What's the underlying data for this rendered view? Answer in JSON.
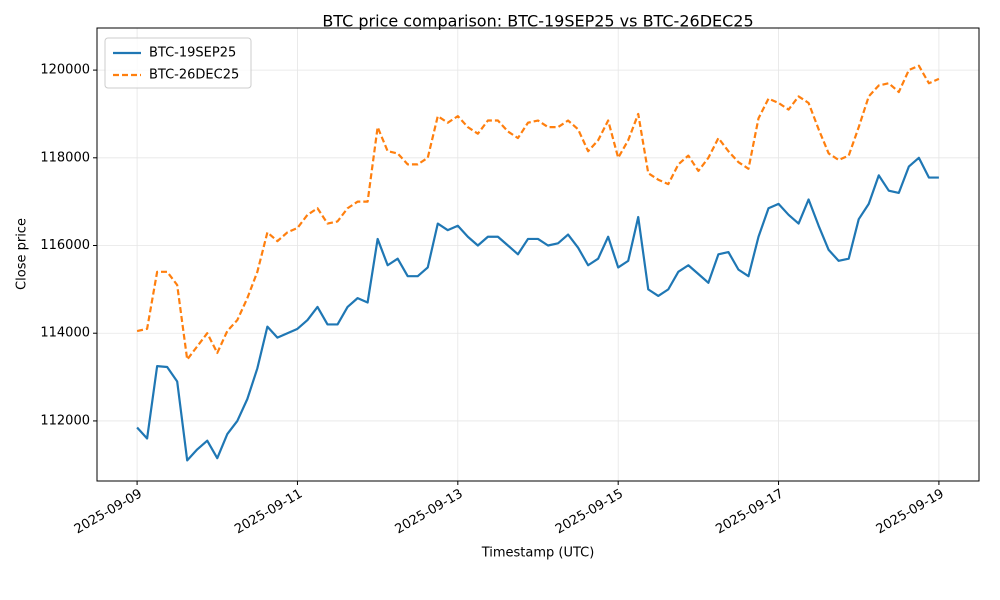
{
  "chart_data": {
    "type": "line",
    "title": "BTC price comparison: BTC-19SEP25 vs BTC-26DEC25",
    "x_label": "Timestamp (UTC)",
    "y_label": "Close price",
    "x": [
      "2025-09-09 00:00",
      "2025-09-09 03:00",
      "2025-09-09 06:00",
      "2025-09-09 09:00",
      "2025-09-09 12:00",
      "2025-09-09 15:00",
      "2025-09-09 18:00",
      "2025-09-09 21:00",
      "2025-09-10 00:00",
      "2025-09-10 03:00",
      "2025-09-10 06:00",
      "2025-09-10 09:00",
      "2025-09-10 12:00",
      "2025-09-10 15:00",
      "2025-09-10 18:00",
      "2025-09-10 21:00",
      "2025-09-11 00:00",
      "2025-09-11 03:00",
      "2025-09-11 06:00",
      "2025-09-11 09:00",
      "2025-09-11 12:00",
      "2025-09-11 15:00",
      "2025-09-11 18:00",
      "2025-09-11 21:00",
      "2025-09-12 00:00",
      "2025-09-12 03:00",
      "2025-09-12 06:00",
      "2025-09-12 09:00",
      "2025-09-12 12:00",
      "2025-09-12 15:00",
      "2025-09-12 18:00",
      "2025-09-12 21:00",
      "2025-09-13 00:00",
      "2025-09-13 03:00",
      "2025-09-13 06:00",
      "2025-09-13 09:00",
      "2025-09-13 12:00",
      "2025-09-13 15:00",
      "2025-09-13 18:00",
      "2025-09-13 21:00",
      "2025-09-14 00:00",
      "2025-09-14 03:00",
      "2025-09-14 06:00",
      "2025-09-14 09:00",
      "2025-09-14 12:00",
      "2025-09-14 15:00",
      "2025-09-14 18:00",
      "2025-09-14 21:00",
      "2025-09-15 00:00",
      "2025-09-15 03:00",
      "2025-09-15 06:00",
      "2025-09-15 09:00",
      "2025-09-15 12:00",
      "2025-09-15 15:00",
      "2025-09-15 18:00",
      "2025-09-15 21:00",
      "2025-09-16 00:00",
      "2025-09-16 03:00",
      "2025-09-16 06:00",
      "2025-09-16 09:00",
      "2025-09-16 12:00",
      "2025-09-16 15:00",
      "2025-09-16 18:00",
      "2025-09-16 21:00",
      "2025-09-17 00:00",
      "2025-09-17 03:00",
      "2025-09-17 06:00",
      "2025-09-17 09:00",
      "2025-09-17 12:00",
      "2025-09-17 15:00",
      "2025-09-17 18:00",
      "2025-09-17 21:00",
      "2025-09-18 00:00",
      "2025-09-18 03:00",
      "2025-09-18 06:00",
      "2025-09-18 09:00",
      "2025-09-18 12:00",
      "2025-09-18 15:00",
      "2025-09-18 18:00",
      "2025-09-18 21:00",
      "2025-09-19 00:00"
    ],
    "series": [
      {
        "name": "BTC-19SEP25",
        "color": "#1f77b4",
        "dashed": false,
        "values": [
          111850,
          111600,
          113250,
          113230,
          112900,
          111100,
          111350,
          111550,
          111150,
          111700,
          112000,
          112500,
          113200,
          114150,
          113900,
          114000,
          114100,
          114300,
          114600,
          114200,
          114200,
          114600,
          114800,
          114700,
          116150,
          115550,
          115700,
          115300,
          115300,
          115500,
          116500,
          116350,
          116450,
          116200,
          116000,
          116200,
          116200,
          116000,
          115800,
          116150,
          116150,
          116000,
          116050,
          116250,
          115950,
          115550,
          115700,
          116200,
          115500,
          115650,
          116650,
          115000,
          114850,
          115000,
          115400,
          115550,
          115350,
          115150,
          115800,
          115850,
          115450,
          115300,
          116200,
          116850,
          116950,
          116700,
          116500,
          117050,
          116450,
          115900,
          115650,
          115700,
          116600,
          116950,
          117600,
          117250,
          117200,
          117800,
          118000,
          117550,
          117550
        ]
      },
      {
        "name": "BTC-26DEC25",
        "color": "#ff7f0e",
        "dashed": true,
        "values": [
          114050,
          114100,
          115400,
          115400,
          115100,
          113400,
          113700,
          114000,
          113550,
          114050,
          114300,
          114800,
          115400,
          116300,
          116100,
          116300,
          116400,
          116700,
          116850,
          116500,
          116550,
          116850,
          117000,
          117000,
          118700,
          118150,
          118100,
          117850,
          117850,
          118000,
          118950,
          118800,
          118950,
          118700,
          118550,
          118850,
          118850,
          118600,
          118450,
          118800,
          118850,
          118700,
          118700,
          118850,
          118650,
          118150,
          118400,
          118850,
          118000,
          118400,
          119000,
          117650,
          117500,
          117400,
          117850,
          118050,
          117700,
          118000,
          118450,
          118150,
          117900,
          117750,
          118900,
          119350,
          119250,
          119100,
          119400,
          119250,
          118650,
          118100,
          117950,
          118050,
          118700,
          119400,
          119650,
          119700,
          119500,
          120000,
          120100,
          119700,
          119800
        ]
      }
    ],
    "xlim": [
      "2025-09-08 12:00",
      "2025-09-19 12:00"
    ],
    "xticks": [
      "2025-09-09",
      "2025-09-11",
      "2025-09-13",
      "2025-09-15",
      "2025-09-17",
      "2025-09-19"
    ],
    "ylim": [
      110630,
      120960
    ],
    "yticks": [
      112000,
      114000,
      116000,
      118000,
      120000
    ],
    "grid": true,
    "legend": "upper-left"
  }
}
